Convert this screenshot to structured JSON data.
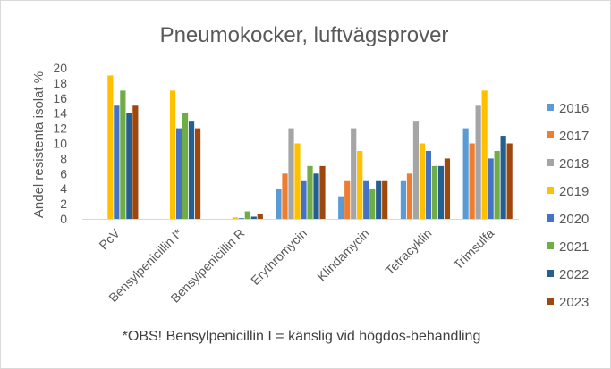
{
  "chart_data": {
    "type": "bar",
    "title": "Pneumokocker, luftvägsprover",
    "ylabel": "Andel resistenta isolat %",
    "xlabel": "",
    "ylim": [
      0,
      20
    ],
    "yticks": [
      0,
      2,
      4,
      6,
      8,
      10,
      12,
      14,
      16,
      18,
      20
    ],
    "grid": false,
    "legend_position": "right",
    "categories": [
      "PcV",
      "Bensylpenicillin I*",
      "Bensylpenicillin R",
      "Erythromycin",
      "Klindamycin",
      "Tetracyklin",
      "Trimsulfa"
    ],
    "series": [
      {
        "name": "2016",
        "color": "#5b9bd5",
        "values": [
          0,
          0,
          0,
          4,
          3,
          5,
          12
        ]
      },
      {
        "name": "2017",
        "color": "#ed7d31",
        "values": [
          0,
          0,
          0,
          6,
          5,
          6,
          10
        ]
      },
      {
        "name": "2018",
        "color": "#a5a5a5",
        "values": [
          0,
          0,
          0,
          12,
          12,
          13,
          15
        ]
      },
      {
        "name": "2019",
        "color": "#ffc000",
        "values": [
          19,
          17,
          0.2,
          10,
          9,
          10,
          17
        ]
      },
      {
        "name": "2020",
        "color": "#4472c4",
        "values": [
          15,
          12,
          0.1,
          5,
          5,
          9,
          8
        ]
      },
      {
        "name": "2021",
        "color": "#70ad47",
        "values": [
          17,
          14,
          1,
          7,
          4,
          7,
          9
        ]
      },
      {
        "name": "2022",
        "color": "#255e91",
        "values": [
          14,
          13,
          0.3,
          6,
          5,
          7,
          11
        ]
      },
      {
        "name": "2023",
        "color": "#9e480e",
        "values": [
          15,
          12,
          0.7,
          7,
          5,
          8,
          10
        ]
      }
    ],
    "footnote": "*OBS! Bensylpenicillin I = känslig vid högdos-behandling"
  }
}
